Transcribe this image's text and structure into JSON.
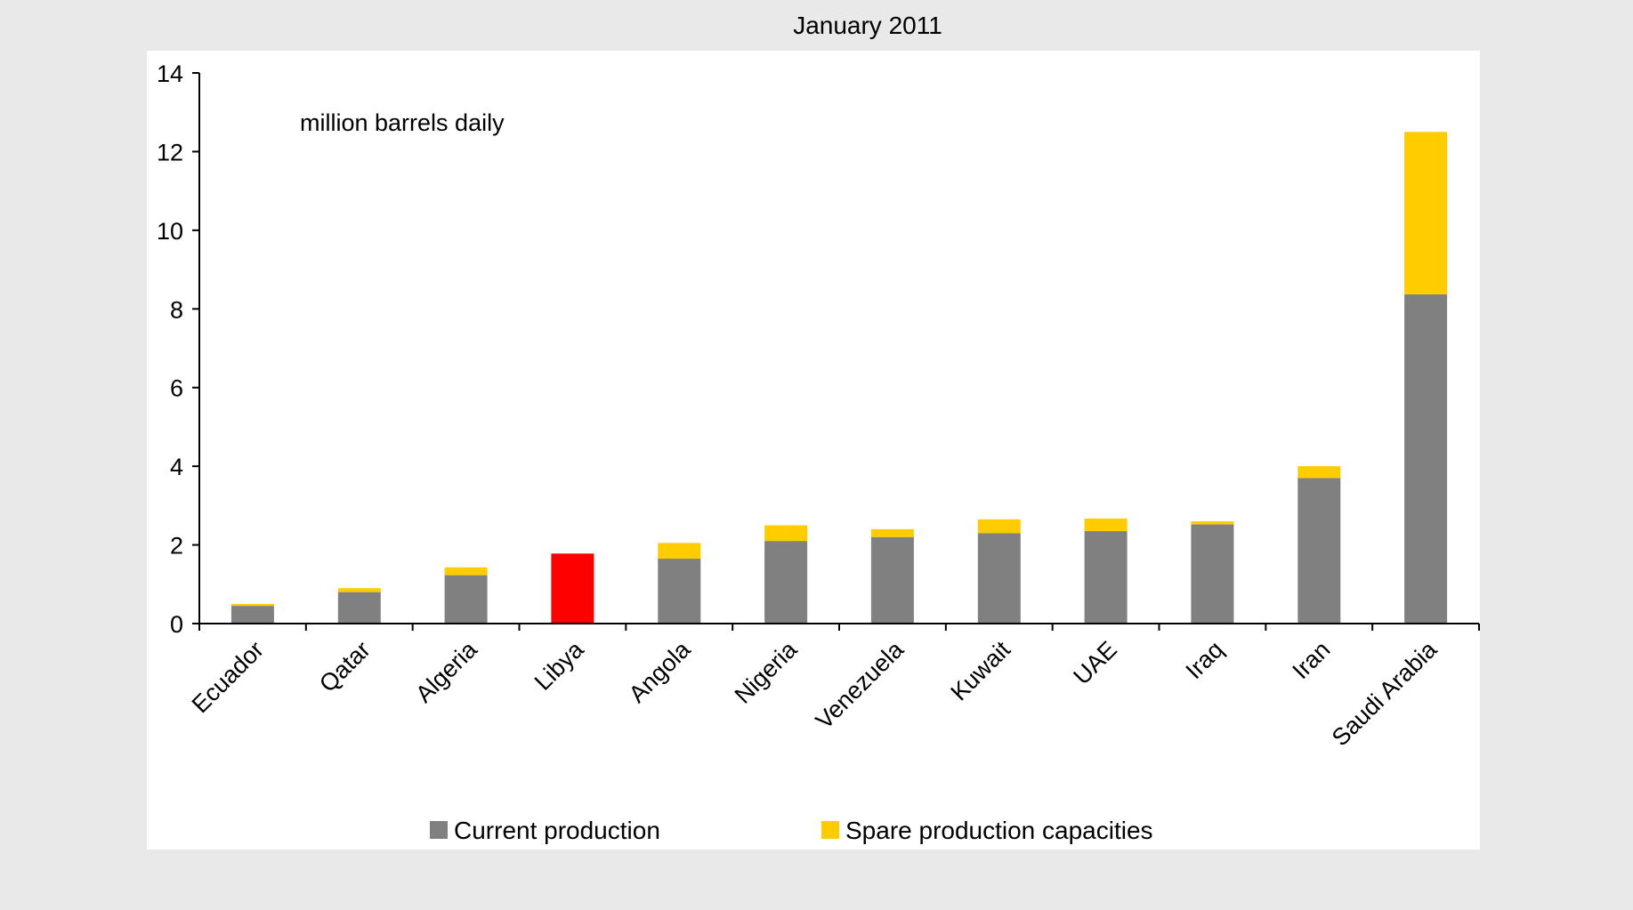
{
  "chart_data": {
    "type": "bar",
    "stacked": true,
    "title": "January 2011",
    "annotation": "million barrels daily",
    "xlabel": "",
    "ylabel": "",
    "ylim": [
      0,
      14
    ],
    "yticks": [
      0,
      2,
      4,
      6,
      8,
      10,
      12,
      14
    ],
    "grid": false,
    "legend_position": "bottom",
    "categories": [
      "Ecuador",
      "Qatar",
      "Algeria",
      "Libya",
      "Angola",
      "Nigeria",
      "Venezuela",
      "Kuwait",
      "UAE",
      "Iraq",
      "Iran",
      "Saudi Arabia"
    ],
    "series": [
      {
        "name": "Current production",
        "color": "#808080",
        "values": [
          0.45,
          0.8,
          1.23,
          1.78,
          1.65,
          2.1,
          2.2,
          2.3,
          2.35,
          2.52,
          3.7,
          8.37
        ]
      },
      {
        "name": "Spare production capacities",
        "color": "#ffcc00",
        "values": [
          0.05,
          0.1,
          0.2,
          0.0,
          0.4,
          0.4,
          0.2,
          0.35,
          0.32,
          0.08,
          0.3,
          4.13
        ]
      }
    ],
    "highlight": {
      "category": "Libya",
      "color": "#ff0000"
    }
  },
  "colors": {
    "outer_background": "#e9e9e9",
    "plot_background": "#ffffff",
    "axis": "#000000"
  }
}
